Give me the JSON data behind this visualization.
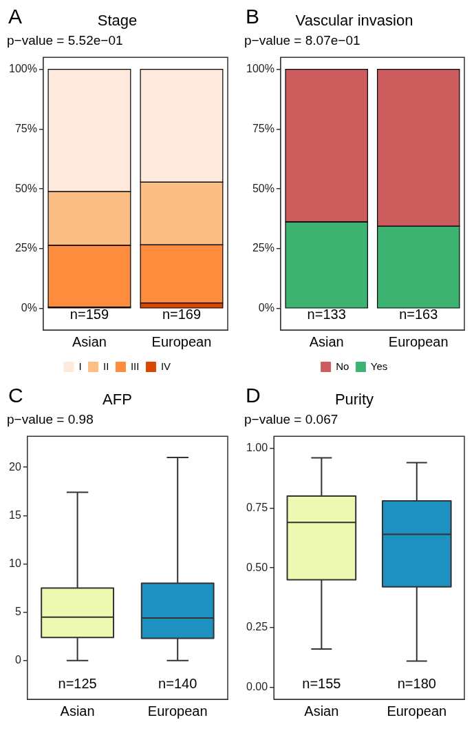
{
  "chart_data": [
    {
      "type": "bar",
      "title": "Stage",
      "subtitle": "p−value = 5.52e−01",
      "categories": [
        "Asian",
        "European"
      ],
      "stacked": true,
      "series": [
        {
          "name": "IV",
          "color": "#d94701",
          "values": [
            0.6,
            2.3
          ]
        },
        {
          "name": "III",
          "color": "#fd8d3c",
          "values": [
            25.8,
            24.3
          ]
        },
        {
          "name": "II",
          "color": "#fdbe85",
          "values": [
            22.5,
            26.2
          ]
        },
        {
          "name": "I",
          "color": "#feeadc",
          "values": [
            51.1,
            47.2
          ]
        }
      ],
      "ylim": [
        -9,
        105
      ],
      "yticks": [
        {
          "value": 0,
          "label": "0%"
        },
        {
          "value": 25,
          "label": "25%"
        },
        {
          "value": 50,
          "label": "50%"
        },
        {
          "value": 75,
          "label": "75%"
        },
        {
          "value": 100,
          "label": "100%"
        }
      ],
      "grid": false,
      "legend": "bottom",
      "annotations": [
        "A",
        "n=159",
        "n=169"
      ]
    },
    {
      "type": "bar",
      "title": "Vascular invasion",
      "subtitle": "p−value = 8.07e−01",
      "categories": [
        "Asian",
        "European"
      ],
      "stacked": true,
      "series": [
        {
          "name": "Yes",
          "color": "#3cb371",
          "values": [
            36.2,
            34.4
          ]
        },
        {
          "name": "No",
          "color": "#cd5c5c",
          "values": [
            63.8,
            65.6
          ]
        }
      ],
      "ylim": [
        -9,
        105
      ],
      "yticks": [
        {
          "value": 0,
          "label": "0%"
        },
        {
          "value": 25,
          "label": "25%"
        },
        {
          "value": 50,
          "label": "50%"
        },
        {
          "value": 75,
          "label": "75%"
        },
        {
          "value": 100,
          "label": "100%"
        }
      ],
      "grid": false,
      "legend": "bottom",
      "annotations": [
        "B",
        "n=133",
        "n=163"
      ]
    },
    {
      "type": "box",
      "title": "AFP",
      "subtitle": "p−value = 0.98",
      "categories": [
        "Asian",
        "European"
      ],
      "colors": [
        "#edf8b1",
        "#1d91c0"
      ],
      "boxes": [
        {
          "low": 0,
          "q1": 2.4,
          "median": 4.5,
          "q3": 7.5,
          "high": 17.4
        },
        {
          "low": 0,
          "q1": 2.3,
          "median": 4.4,
          "q3": 8,
          "high": 21
        }
      ],
      "ylim": [
        -4,
        23.2
      ],
      "yticks": [
        0,
        5,
        10,
        15,
        20
      ],
      "grid": false,
      "annotations": [
        "C",
        "n=125",
        "n=140"
      ]
    },
    {
      "type": "box",
      "title": "Purity",
      "subtitle": "p−value = 0.067",
      "categories": [
        "Asian",
        "European"
      ],
      "colors": [
        "#edf8b1",
        "#1d91c0"
      ],
      "boxes": [
        {
          "low": 0.16,
          "q1": 0.45,
          "median": 0.69,
          "q3": 0.8,
          "high": 0.96
        },
        {
          "low": 0.11,
          "q1": 0.42,
          "median": 0.64,
          "q3": 0.78,
          "high": 0.94
        }
      ],
      "ylim": [
        -0.05,
        1.05
      ],
      "yticks": [
        {
          "value": 0,
          "label": "0.00"
        },
        {
          "value": 0.25,
          "label": "0.25"
        },
        {
          "value": 0.5,
          "label": "0.50"
        },
        {
          "value": 0.75,
          "label": "0.75"
        },
        {
          "value": 1,
          "label": "1.00"
        }
      ],
      "grid": false,
      "annotations": [
        "D",
        "n=155",
        "n=180"
      ]
    }
  ]
}
